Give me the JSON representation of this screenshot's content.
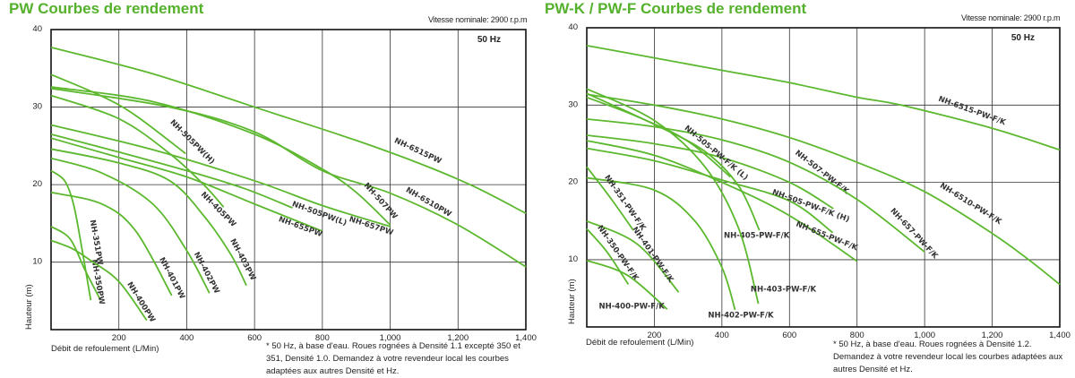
{
  "colors": {
    "curve": "#5cb82e",
    "title": "#55b12c",
    "grid": "#333333"
  },
  "chart_data": [
    {
      "type": "line",
      "title": "PW Courbes de rendement",
      "subtitle": "Vitesse nominale: 2900 r.p.m",
      "frequency_label": "50 Hz",
      "xlabel": "Débit de refoulement (L/Min)",
      "ylabel": "Hauteur (m)",
      "xlim": [
        0,
        1400
      ],
      "ylim": [
        1.3,
        40
      ],
      "x_ticks": [
        200,
        400,
        600,
        800,
        1000,
        1200,
        1400
      ],
      "x_tick_labels": [
        "200",
        "400",
        "600",
        "800",
        "1,000",
        "1,200",
        "1,400"
      ],
      "y_ticks": [
        10,
        20,
        30,
        40
      ],
      "y_tick_labels": [
        "10",
        "20",
        "30",
        "40"
      ],
      "grid": true,
      "note": "* 50 Hz, à base d'eau. Roues rognées à Densité 1.1 excepté 350 et 351, Densité 1.0. Demandez à votre revendeur local les courbes adaptées aux autres Densité et Hz.",
      "series": [
        {
          "name": "NH-6515PW",
          "points": [
            [
              0,
              37.7
            ],
            [
              300,
              34.3
            ],
            [
              600,
              30
            ],
            [
              900,
              25.7
            ],
            [
              1100,
              22.5
            ],
            [
              1250,
              19.7
            ],
            [
              1400,
              16.3
            ]
          ],
          "label_at": [
            1079,
            24.1
          ]
        },
        {
          "name": "NH-6510PW",
          "points": [
            [
              0,
              32.4
            ],
            [
              350,
              30
            ],
            [
              600,
              26.8
            ],
            [
              800,
              21.8
            ],
            [
              1000,
              18.9
            ],
            [
              1200,
              14.8
            ],
            [
              1400,
              9.4
            ]
          ],
          "label_at": [
            1110,
            17.5
          ]
        },
        {
          "name": "NH-507PW",
          "points": [
            [
              0,
              32.6
            ],
            [
              300,
              30.7
            ],
            [
              600,
              26.5
            ],
            [
              800,
              22
            ],
            [
              900,
              19
            ],
            [
              1000,
              14.8
            ]
          ],
          "label_at": [
            967,
            17.7
          ]
        },
        {
          "name": "NH-505PW(H)",
          "points": [
            [
              0,
              34.2
            ],
            [
              150,
              31.4
            ],
            [
              250,
              28.9
            ],
            [
              397,
              24
            ]
          ],
          "label_at": [
            412,
            25.3
          ]
        },
        {
          "name": "NH-405PW",
          "points": [
            [
              0,
              31.5
            ],
            [
              200,
              28.5
            ],
            [
              350,
              24
            ],
            [
              450,
              20
            ],
            [
              509,
              17.1
            ]
          ],
          "label_at": [
            489,
            16.6
          ]
        },
        {
          "name": "NH-657PW",
          "points": [
            [
              0,
              27.7
            ],
            [
              300,
              24.5
            ],
            [
              600,
              20.5
            ],
            [
              800,
              17.3
            ],
            [
              1000,
              14.6
            ]
          ],
          "label_at": [
            942,
            14.4
          ]
        },
        {
          "name": "NH-505PW(L)",
          "points": [
            [
              0,
              26.5
            ],
            [
              200,
              24.2
            ],
            [
              400,
              21.8
            ],
            [
              570,
              19.5
            ],
            [
              712,
              17
            ]
          ],
          "label_at": [
            789,
            16
          ]
        },
        {
          "name": "NH-655PW",
          "points": [
            [
              0,
              26
            ],
            [
              200,
              23.5
            ],
            [
              400,
              21
            ],
            [
              600,
              17.5
            ],
            [
              800,
              14
            ]
          ],
          "label_at": [
            733,
            14.3
          ]
        },
        {
          "name": "NH-403PW",
          "points": [
            [
              0,
              24.6
            ],
            [
              200,
              22.8
            ],
            [
              350,
              20.5
            ],
            [
              450,
              16
            ],
            [
              530,
              11
            ],
            [
              576,
              7
            ]
          ],
          "label_at": [
            560,
            10.2
          ]
        },
        {
          "name": "NH-402PW",
          "points": [
            [
              0,
              23.4
            ],
            [
              150,
              21.5
            ],
            [
              300,
              17.5
            ],
            [
              400,
              11.5
            ],
            [
              467,
              6
            ]
          ],
          "label_at": [
            453,
            8.5
          ]
        },
        {
          "name": "NH-401PW",
          "points": [
            [
              0,
              19
            ],
            [
              150,
              17.5
            ],
            [
              250,
              14
            ],
            [
              356,
              5.7
            ]
          ],
          "label_at": [
            351,
            7.8
          ]
        },
        {
          "name": "NH-351PW",
          "points": [
            [
              0,
              21.8
            ],
            [
              40,
              20.5
            ],
            [
              66,
              17.5
            ],
            [
              90,
              12
            ],
            [
              117,
              5.1
            ]
          ],
          "label_at": [
            127,
            12.5
          ]
        },
        {
          "name": "NH-350PW",
          "points": [
            [
              0,
              14.6
            ],
            [
              56,
              13
            ],
            [
              100,
              9
            ],
            [
              146,
              5.1
            ]
          ],
          "label_at": [
            132,
            7.4
          ]
        },
        {
          "name": "NH-400PW",
          "points": [
            [
              0,
              12.8
            ],
            [
              60,
              11.8
            ],
            [
              117,
              10.2
            ],
            [
              200,
              7.5
            ],
            [
              282,
              2.5
            ]
          ],
          "label_at": [
            260,
            4.7
          ]
        }
      ]
    },
    {
      "type": "line",
      "title": "PW-K / PW-F Courbes de rendement",
      "subtitle": "Vitesse nominale: 2900 r.p.m",
      "frequency_label": "50 Hz",
      "xlabel": "Débit de refoulement (L/Min)",
      "ylabel": "Hauteur (m)",
      "xlim": [
        0,
        1400
      ],
      "ylim": [
        1.3,
        40
      ],
      "x_ticks": [
        200,
        400,
        600,
        800,
        1000,
        1200,
        1400
      ],
      "x_tick_labels": [
        "200",
        "400",
        "600",
        "800",
        "1,000",
        "1,200",
        "1,400"
      ],
      "y_ticks": [
        10,
        20,
        30,
        40
      ],
      "y_tick_labels": [
        "10",
        "20",
        "30",
        "40"
      ],
      "grid": true,
      "note": "* 50 Hz, à base d'eau. Roues rognées à Densité 1.2. Demandez à votre revendeur local les courbes adaptées aux autres Densité et Hz.",
      "series": [
        {
          "name": "NH-6515-PW-F/K",
          "points": [
            [
              0,
              37.7
            ],
            [
              200,
              36.1
            ],
            [
              400,
              34.5
            ],
            [
              600,
              32.9
            ],
            [
              800,
              31
            ],
            [
              930,
              30
            ],
            [
              1200,
              27
            ],
            [
              1400,
              24.2
            ]
          ],
          "label_at": [
            1138,
            29
          ]
        },
        {
          "name": "NH-6510-PW-F/K",
          "points": [
            [
              0,
              31.4
            ],
            [
              200,
              30
            ],
            [
              400,
              28.2
            ],
            [
              600,
              25.8
            ],
            [
              800,
              22.6
            ],
            [
              1000,
              18.8
            ],
            [
              1200,
              13.4
            ],
            [
              1308,
              10
            ],
            [
              1400,
              6.8
            ]
          ],
          "label_at": [
            1133,
            17
          ]
        },
        {
          "name": "NH-507-PW-F/K",
          "points": [
            [
              0,
              26.1
            ],
            [
              200,
              25
            ],
            [
              400,
              23.2
            ],
            [
              600,
              20
            ],
            [
              730,
              16.6
            ]
          ],
          "label_at": [
            692,
            21.1
          ]
        },
        {
          "name": "NH-657-PW-F/K",
          "points": [
            [
              0,
              28.2
            ],
            [
              200,
              27.2
            ],
            [
              400,
              25.5
            ],
            [
              600,
              22.6
            ],
            [
              800,
              17.8
            ],
            [
              1000,
              11
            ]
          ],
          "label_at": [
            964,
            13.2
          ]
        },
        {
          "name": "NH-655-PW-F/K",
          "points": [
            [
              0,
              25.4
            ],
            [
              200,
              23.5
            ],
            [
              400,
              20
            ],
            [
              600,
              15.7
            ],
            [
              800,
              9.8
            ]
          ],
          "label_at": [
            708,
            12.8
          ]
        },
        {
          "name": "NH-505-PW-F/K (H)",
          "points": [
            [
              0,
              24.4
            ],
            [
              200,
              22.8
            ],
            [
              400,
              20.3
            ],
            [
              600,
              17.6
            ],
            [
              728,
              13.5
            ]
          ],
          "label_at": [
            661,
            16.7
          ]
        },
        {
          "name": "NH-505-PW-F/K (L)",
          "points": [
            [
              0,
              31
            ],
            [
              150,
              28.5
            ],
            [
              300,
              25.3
            ],
            [
              425,
              20.7
            ]
          ],
          "label_at": [
            379,
            23.6
          ]
        },
        {
          "name": "NH-405-PW-F/K",
          "points": [
            [
              0,
              31.5
            ],
            [
              200,
              27.5
            ],
            [
              350,
              24
            ],
            [
              450,
              19.5
            ],
            [
              511,
              13.8
            ]
          ],
          "label_at": [
            503,
            12.8
          ]
        },
        {
          "name": "NH-403-PW-F/K",
          "points": [
            [
              0,
              32.1
            ],
            [
              200,
              28
            ],
            [
              350,
              22
            ],
            [
              450,
              14
            ],
            [
              508,
              4.3
            ]
          ],
          "label_at": [
            582,
            5.9
          ]
        },
        {
          "name": "NH-402-PW-F/K",
          "points": [
            [
              0,
              20.6
            ],
            [
              200,
              19
            ],
            [
              320,
              15
            ],
            [
              400,
              9
            ],
            [
              439,
              3.5
            ]
          ],
          "label_at": [
            456,
            2.5
          ]
        },
        {
          "name": "NH-401-PW-F/K",
          "points": [
            [
              0,
              15
            ],
            [
              150,
              12
            ],
            [
              272,
              5.8
            ]
          ],
          "label_at": [
            190,
            10.5
          ]
        },
        {
          "name": "NH-351-PW-F/K",
          "points": [
            [
              0,
              22
            ],
            [
              70,
              18
            ],
            [
              138,
              13.8
            ]
          ],
          "label_at": [
            108,
            17.2
          ]
        },
        {
          "name": "NH-350-PW-F/K",
          "points": [
            [
              0,
              14
            ],
            [
              60,
              11
            ],
            [
              123,
              6.8
            ]
          ],
          "label_at": [
            87,
            10.7
          ]
        },
        {
          "name": "NH-400-PW-F/K",
          "points": [
            [
              0,
              9.9
            ],
            [
              120,
              8
            ],
            [
              238,
              3.6
            ]
          ],
          "label_at": [
            133,
            3.7
          ]
        }
      ]
    }
  ]
}
